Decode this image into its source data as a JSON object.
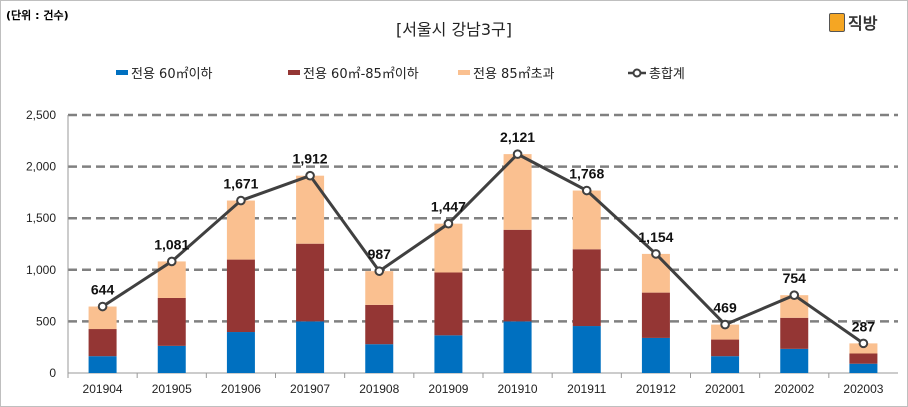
{
  "chart_data": {
    "type": "bar",
    "stacked": true,
    "title": "[서울시  강남3구]",
    "unit_label": "(단위 : 건수)",
    "brand": "직방",
    "categories": [
      "201904",
      "201905",
      "201906",
      "201907",
      "201908",
      "201909",
      "201910",
      "201911",
      "201912",
      "202001",
      "202002",
      "202003"
    ],
    "series": [
      {
        "name": "전용  60㎡이하",
        "color": "#0070c0",
        "values": [
          163,
          263,
          397,
          500,
          279,
          365,
          500,
          455,
          340,
          163,
          234,
          90
        ]
      },
      {
        "name": "전용  60㎡-85㎡이하",
        "color": "#943634",
        "values": [
          263,
          464,
          702,
          753,
          381,
          609,
          888,
          744,
          439,
          161,
          301,
          99
        ]
      },
      {
        "name": "전용  85㎡초과",
        "color": "#fac090",
        "values": [
          218,
          354,
          572,
          659,
          327,
          473,
          733,
          569,
          375,
          145,
          219,
          98
        ]
      }
    ],
    "line": {
      "name": "총합계",
      "color": "#404040",
      "values": [
        644,
        1081,
        1671,
        1912,
        987,
        1447,
        2121,
        1768,
        1154,
        469,
        754,
        287
      ],
      "labels": [
        "644",
        "1,081",
        "1,671",
        "1,912",
        "987",
        "1,447",
        "2,121",
        "1,768",
        "1,154",
        "469",
        "754",
        "287"
      ]
    },
    "ylim": [
      0,
      2500
    ],
    "yticks": [
      0,
      500,
      1000,
      1500,
      2000,
      2500
    ],
    "ytick_labels": [
      "0",
      "500",
      "1,000",
      "1,500",
      "2,000",
      "2,500"
    ],
    "grid": "dashed horizontal",
    "legend": "top"
  }
}
